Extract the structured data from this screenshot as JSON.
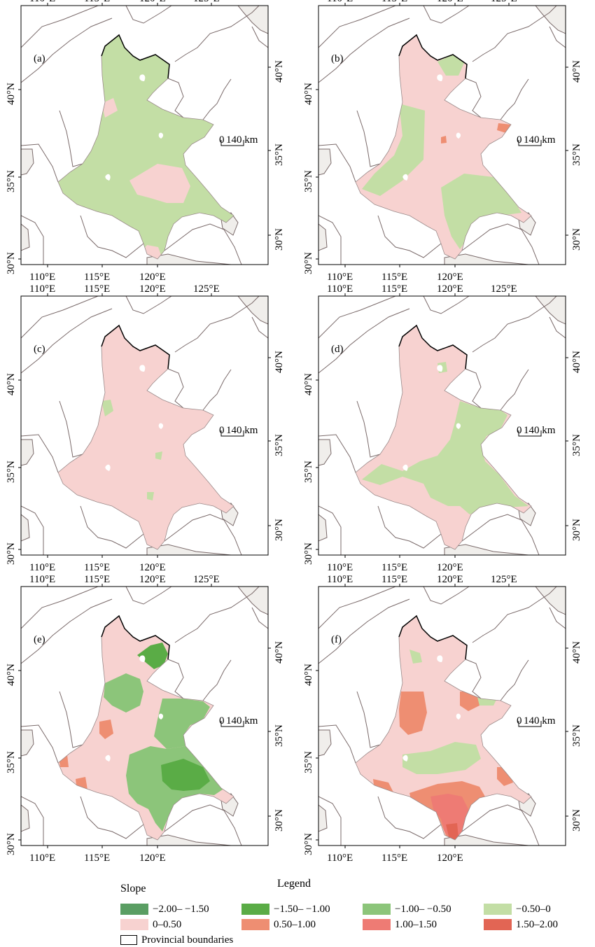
{
  "panels": [
    {
      "label": "(a)",
      "scale": {
        "zero": "0",
        "dist": "140 km"
      }
    },
    {
      "label": "(b)",
      "scale": {
        "zero": "0",
        "dist": "140 km"
      }
    },
    {
      "label": "(c)",
      "scale": {
        "zero": "0",
        "dist": "140 km"
      }
    },
    {
      "label": "(d)",
      "scale": {
        "zero": "0",
        "dist": "140 km"
      }
    },
    {
      "label": "(e)",
      "scale": {
        "zero": "0",
        "dist": "140 km"
      }
    },
    {
      "label": "(f)",
      "scale": {
        "zero": "0",
        "dist": "140 km"
      }
    }
  ],
  "axes": {
    "top_ticks": [
      "110°E",
      "115°E",
      "120°E",
      "125°E"
    ],
    "bottom_ticks": [
      "110°E",
      "115°E",
      "120°E"
    ],
    "left_ticks": [
      "30°N",
      "35°N",
      "40°N"
    ],
    "right_ticks": [
      "30°N",
      "35°N",
      "40°N"
    ]
  },
  "legend": {
    "slope_title": "Slope",
    "legend_title": "Legend",
    "classes": [
      {
        "label": "−2.00– −1.50",
        "color": "#5a9e63"
      },
      {
        "label": "−1.50– −1.00",
        "color": "#5aac46"
      },
      {
        "label": "−1.00– −0.50",
        "color": "#8cc57a"
      },
      {
        "label": "−0.50–0",
        "color": "#c3dea5"
      },
      {
        "label": "0–0.50",
        "color": "#f7d2d0"
      },
      {
        "label": "0.50–1.00",
        "color": "#ee8e72"
      },
      {
        "label": "1.00–1.50",
        "color": "#ee7b74"
      },
      {
        "label": "1.50–2.00",
        "color": "#e26554"
      }
    ],
    "boundary_label": "Provincial boundaries"
  },
  "colors": {
    "sea": "#f0eeeb",
    "boundary_line": "#7a6a6a",
    "region_outline": "#000000"
  }
}
